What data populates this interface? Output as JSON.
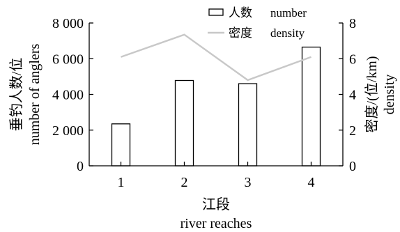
{
  "chart_data": {
    "type": "bar+line",
    "categories": [
      "1",
      "2",
      "3",
      "4"
    ],
    "series": [
      {
        "name": "人数 number",
        "type": "bar",
        "axis": "left",
        "values": [
          2350,
          4780,
          4600,
          6650
        ]
      },
      {
        "name": "密度 density",
        "type": "line",
        "axis": "right",
        "values": [
          6.1,
          7.35,
          4.8,
          6.1
        ]
      }
    ],
    "xlabel": [
      "江段",
      "river reaches"
    ],
    "ylabel_left": [
      "垂钓人数/位",
      "number of anglers"
    ],
    "ylabel_right": [
      "密度/(位/km)",
      "density"
    ],
    "ylim_left": [
      0,
      8000
    ],
    "ylim_right": [
      0,
      8
    ],
    "yticks_left": [
      "0",
      "2 000",
      "4 000",
      "6 000",
      "8 000"
    ],
    "yticks_right": [
      "0",
      "2",
      "4",
      "6",
      "8"
    ],
    "grid": false,
    "legend_position": "top-center",
    "legend": [
      {
        "cn": "人数",
        "en": "number",
        "symbol": "bar"
      },
      {
        "cn": "密度",
        "en": "density",
        "symbol": "line"
      }
    ],
    "colors": {
      "bar_fill": "#ffffff",
      "bar_stroke": "#000000",
      "line": "#c8c8c8",
      "axis": "#000000"
    }
  }
}
